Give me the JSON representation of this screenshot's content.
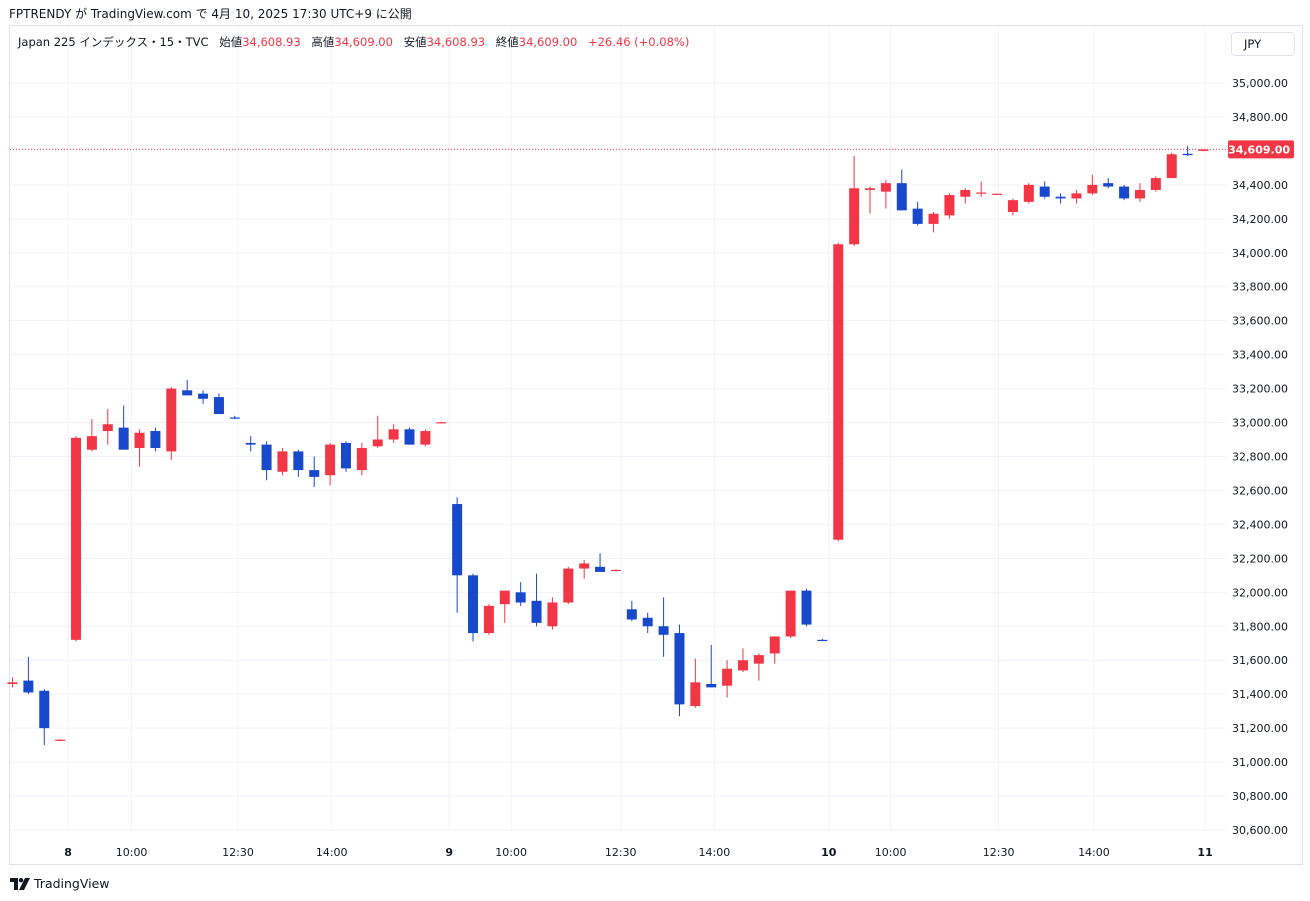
{
  "header": {
    "publish_line": "FPTRENDY が TradingView.com で 4月 10, 2025 17:30 UTC+9 に公開"
  },
  "legend": {
    "symbol": "Japan 225 インデックス・15・TVC",
    "open_label": "始値",
    "open_value": "34,608.93",
    "high_label": "高値",
    "high_value": "34,609.00",
    "low_label": "安値",
    "low_value": "34,608.93",
    "close_label": "終値",
    "close_value": "34,609.00",
    "change": "+26.46 (+0.08%)"
  },
  "currency_button": "JPY",
  "last_price_label": "34,609.00",
  "footer": {
    "brand": "TradingView"
  },
  "colors": {
    "up": "#f23645",
    "down": "#1848cc",
    "grid": "#f0f3fa",
    "text": "#131722"
  },
  "chart_data": {
    "type": "candlestick",
    "title": "Japan 225 インデックス・15・TVC",
    "currency": "JPY",
    "ylim": [
      30560,
      35100
    ],
    "y_ticks": [
      "35,000.00",
      "34,800.00",
      "34,600.00",
      "34,400.00",
      "34,200.00",
      "34,000.00",
      "33,800.00",
      "33,600.00",
      "33,400.00",
      "33,200.00",
      "33,000.00",
      "32,800.00",
      "32,600.00",
      "32,400.00",
      "32,200.00",
      "32,000.00",
      "31,800.00",
      "31,600.00",
      "31,400.00",
      "31,200.00",
      "31,000.00",
      "30,800.00",
      "30,600.00"
    ],
    "y_tick_values": [
      35000,
      34800,
      34600,
      34400,
      34200,
      34000,
      33800,
      33600,
      33400,
      33200,
      33000,
      32800,
      32600,
      32400,
      32200,
      32000,
      31800,
      31600,
      31400,
      31200,
      31000,
      30800,
      30600
    ],
    "x_ticks": [
      {
        "index": 3.5,
        "label": "8",
        "bold": true
      },
      {
        "index": 7.5,
        "label": "10:00",
        "bold": false
      },
      {
        "index": 14.2,
        "label": "12:30",
        "bold": false
      },
      {
        "index": 20.1,
        "label": "14:00",
        "bold": false
      },
      {
        "index": 27.5,
        "label": "9",
        "bold": true
      },
      {
        "index": 31.4,
        "label": "10:00",
        "bold": false
      },
      {
        "index": 38.3,
        "label": "12:30",
        "bold": false
      },
      {
        "index": 44.2,
        "label": "14:00",
        "bold": false
      },
      {
        "index": 51.4,
        "label": "10",
        "bold": true
      },
      {
        "index": 55.3,
        "label": "10:00",
        "bold": false
      },
      {
        "index": 62.1,
        "label": "12:30",
        "bold": false
      },
      {
        "index": 68.1,
        "label": "14:00",
        "bold": false
      },
      {
        "index": 75.1,
        "label": "11",
        "bold": true
      }
    ],
    "last_price": 34609.0,
    "candles": [
      {
        "o": 31460,
        "h": 31500,
        "l": 31440,
        "c": 31470
      },
      {
        "o": 31480,
        "h": 31620,
        "l": 31400,
        "c": 31410
      },
      {
        "o": 31420,
        "h": 31430,
        "l": 31100,
        "c": 31200
      },
      {
        "o": 31130,
        "h": 31135,
        "l": 31125,
        "c": 31132
      },
      {
        "o": 31720,
        "h": 32920,
        "l": 31710,
        "c": 32910
      },
      {
        "o": 32840,
        "h": 33020,
        "l": 32830,
        "c": 32920
      },
      {
        "o": 32950,
        "h": 33080,
        "l": 32870,
        "c": 32990
      },
      {
        "o": 32970,
        "h": 33100,
        "l": 32850,
        "c": 32840
      },
      {
        "o": 32850,
        "h": 32960,
        "l": 32740,
        "c": 32940
      },
      {
        "o": 32950,
        "h": 32970,
        "l": 32830,
        "c": 32850
      },
      {
        "o": 32830,
        "h": 33210,
        "l": 32780,
        "c": 33200
      },
      {
        "o": 33190,
        "h": 33250,
        "l": 33160,
        "c": 33160
      },
      {
        "o": 33170,
        "h": 33190,
        "l": 33110,
        "c": 33140
      },
      {
        "o": 33150,
        "h": 33170,
        "l": 33050,
        "c": 33050
      },
      {
        "o": 33030,
        "h": 33040,
        "l": 33020,
        "c": 33025
      },
      {
        "o": 32880,
        "h": 32920,
        "l": 32830,
        "c": 32870
      },
      {
        "o": 32870,
        "h": 32890,
        "l": 32660,
        "c": 32720
      },
      {
        "o": 32710,
        "h": 32850,
        "l": 32690,
        "c": 32830
      },
      {
        "o": 32830,
        "h": 32840,
        "l": 32680,
        "c": 32720
      },
      {
        "o": 32720,
        "h": 32800,
        "l": 32620,
        "c": 32680
      },
      {
        "o": 32690,
        "h": 32880,
        "l": 32630,
        "c": 32870
      },
      {
        "o": 32880,
        "h": 32890,
        "l": 32710,
        "c": 32730
      },
      {
        "o": 32720,
        "h": 32880,
        "l": 32690,
        "c": 32850
      },
      {
        "o": 32860,
        "h": 33040,
        "l": 32850,
        "c": 32900
      },
      {
        "o": 32900,
        "h": 32990,
        "l": 32880,
        "c": 32960
      },
      {
        "o": 32960,
        "h": 32970,
        "l": 32870,
        "c": 32870
      },
      {
        "o": 32870,
        "h": 32960,
        "l": 32860,
        "c": 32950
      },
      {
        "o": 33000,
        "h": 33005,
        "l": 32995,
        "c": 33002
      },
      {
        "o": 32520,
        "h": 32560,
        "l": 31880,
        "c": 32100
      },
      {
        "o": 32100,
        "h": 32110,
        "l": 31710,
        "c": 31760
      },
      {
        "o": 31760,
        "h": 31930,
        "l": 31750,
        "c": 31920
      },
      {
        "o": 31930,
        "h": 32010,
        "l": 31820,
        "c": 32010
      },
      {
        "o": 32000,
        "h": 32060,
        "l": 31920,
        "c": 31940
      },
      {
        "o": 31950,
        "h": 32110,
        "l": 31800,
        "c": 31820
      },
      {
        "o": 31800,
        "h": 31970,
        "l": 31780,
        "c": 31940
      },
      {
        "o": 31940,
        "h": 32150,
        "l": 31930,
        "c": 32140
      },
      {
        "o": 32140,
        "h": 32190,
        "l": 32080,
        "c": 32170
      },
      {
        "o": 32150,
        "h": 32230,
        "l": 32120,
        "c": 32120
      },
      {
        "o": 32130,
        "h": 32135,
        "l": 32125,
        "c": 32132
      },
      {
        "o": 31900,
        "h": 31950,
        "l": 31830,
        "c": 31840
      },
      {
        "o": 31850,
        "h": 31880,
        "l": 31760,
        "c": 31800
      },
      {
        "o": 31800,
        "h": 31970,
        "l": 31620,
        "c": 31750
      },
      {
        "o": 31760,
        "h": 31810,
        "l": 31270,
        "c": 31340
      },
      {
        "o": 31330,
        "h": 31610,
        "l": 31320,
        "c": 31470
      },
      {
        "o": 31460,
        "h": 31690,
        "l": 31450,
        "c": 31440
      },
      {
        "o": 31450,
        "h": 31600,
        "l": 31380,
        "c": 31550
      },
      {
        "o": 31540,
        "h": 31670,
        "l": 31530,
        "c": 31600
      },
      {
        "o": 31580,
        "h": 31640,
        "l": 31480,
        "c": 31630
      },
      {
        "o": 31640,
        "h": 31740,
        "l": 31580,
        "c": 31740
      },
      {
        "o": 31740,
        "h": 32010,
        "l": 31730,
        "c": 32010
      },
      {
        "o": 32010,
        "h": 32020,
        "l": 31800,
        "c": 31810
      },
      {
        "o": 31720,
        "h": 31725,
        "l": 31715,
        "c": 31718
      },
      {
        "o": 32310,
        "h": 34060,
        "l": 32300,
        "c": 34050
      },
      {
        "o": 34050,
        "h": 34570,
        "l": 34040,
        "c": 34380
      },
      {
        "o": 34370,
        "h": 34390,
        "l": 34230,
        "c": 34380
      },
      {
        "o": 34360,
        "h": 34430,
        "l": 34260,
        "c": 34410
      },
      {
        "o": 34410,
        "h": 34490,
        "l": 34250,
        "c": 34250
      },
      {
        "o": 34260,
        "h": 34300,
        "l": 34160,
        "c": 34170
      },
      {
        "o": 34170,
        "h": 34240,
        "l": 34120,
        "c": 34230
      },
      {
        "o": 34220,
        "h": 34350,
        "l": 34200,
        "c": 34340
      },
      {
        "o": 34330,
        "h": 34380,
        "l": 34290,
        "c": 34370
      },
      {
        "o": 34350,
        "h": 34420,
        "l": 34330,
        "c": 34355
      },
      {
        "o": 34345,
        "h": 34350,
        "l": 34340,
        "c": 34348
      },
      {
        "o": 34240,
        "h": 34320,
        "l": 34220,
        "c": 34310
      },
      {
        "o": 34300,
        "h": 34410,
        "l": 34290,
        "c": 34400
      },
      {
        "o": 34390,
        "h": 34420,
        "l": 34320,
        "c": 34330
      },
      {
        "o": 34330,
        "h": 34350,
        "l": 34290,
        "c": 34320
      },
      {
        "o": 34320,
        "h": 34370,
        "l": 34290,
        "c": 34350
      },
      {
        "o": 34350,
        "h": 34460,
        "l": 34340,
        "c": 34400
      },
      {
        "o": 34410,
        "h": 34440,
        "l": 34380,
        "c": 34390
      },
      {
        "o": 34390,
        "h": 34400,
        "l": 34310,
        "c": 34320
      },
      {
        "o": 34320,
        "h": 34410,
        "l": 34300,
        "c": 34370
      },
      {
        "o": 34370,
        "h": 34450,
        "l": 34360,
        "c": 34440
      },
      {
        "o": 34440,
        "h": 34590,
        "l": 34440,
        "c": 34580
      },
      {
        "o": 34583,
        "h": 34630,
        "l": 34570,
        "c": 34575
      },
      {
        "o": 34600,
        "h": 34609,
        "l": 34598,
        "c": 34609
      }
    ]
  }
}
